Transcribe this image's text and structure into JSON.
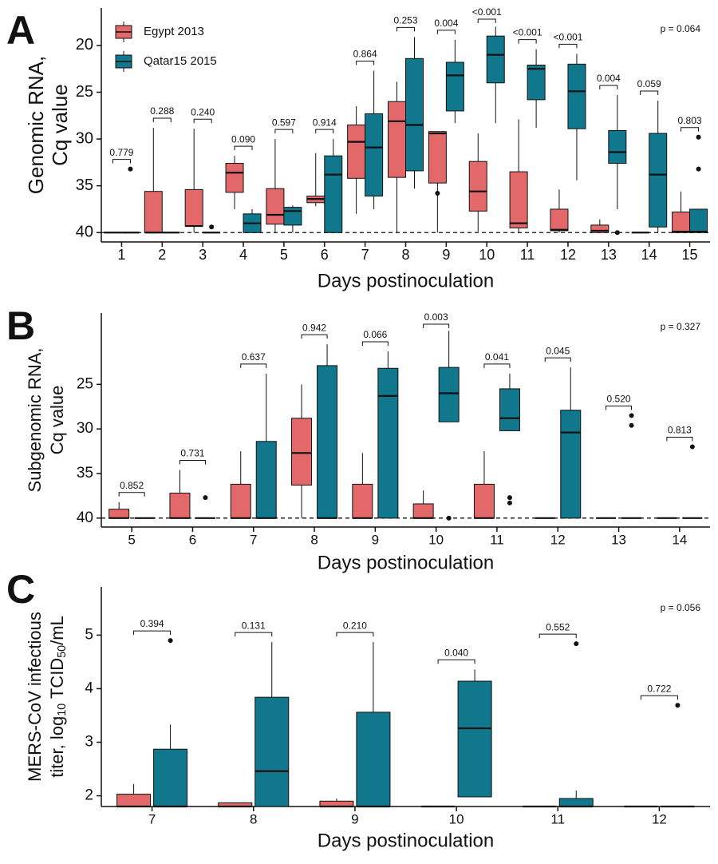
{
  "chart_data": [
    {
      "type": "box",
      "panel": "A",
      "ylabel": [
        [
          "Genomic RNA,"
        ],
        [
          "Cq value"
        ]
      ],
      "xlabel": "Days postinoculation",
      "categories": [
        "1",
        "2",
        "3",
        "4",
        "5",
        "6",
        "7",
        "8",
        "9",
        "10",
        "11",
        "12",
        "13",
        "14",
        "15"
      ],
      "ylim": [
        41,
        16
      ],
      "yticks": [
        20,
        25,
        30,
        35,
        40
      ],
      "hline": 40,
      "legend": "top-left",
      "pvalues": [
        "0.779",
        "0.288",
        "0.240",
        "0.090",
        "0.597",
        "0.914",
        "0.864",
        "0.253",
        "0.004",
        "<0.001",
        "<0.001",
        "<0.001",
        "0.004",
        "0.059",
        "0.803"
      ],
      "p_overall": "p = 0.064",
      "series": [
        {
          "name": "Egypt 2013",
          "color": "#e2686a",
          "min": [
            40,
            28.8,
            28.9,
            31.8,
            30.0,
            31.5,
            26.5,
            23.9,
            29.2,
            29.4,
            27.9,
            35.4,
            38.6,
            40,
            35.6
          ],
          "q1": [
            40,
            35.6,
            35.4,
            32.6,
            35.3,
            36.1,
            28.5,
            26.0,
            29.2,
            32.4,
            33.5,
            37.5,
            39.2,
            40,
            37.8
          ],
          "median": [
            40,
            40,
            39.3,
            33.6,
            38.1,
            36.4,
            30.3,
            28.1,
            29.4,
            35.6,
            39.0,
            39.7,
            39.8,
            40,
            39.9
          ],
          "q3": [
            40,
            40,
            39.3,
            35.7,
            39.1,
            36.8,
            34.2,
            34.1,
            34.7,
            37.7,
            39.5,
            39.8,
            40,
            40,
            40
          ],
          "max": [
            40,
            40,
            40,
            37.5,
            40,
            37.2,
            38.0,
            40,
            40,
            39.9,
            40,
            40,
            40,
            40,
            40
          ],
          "outliers": [
            [],
            [],
            [],
            [],
            [],
            [],
            [],
            [],
            [
              35.8
            ],
            [],
            [],
            [],
            [],
            [],
            []
          ]
        },
        {
          "name": "Qatar15 2015",
          "color": "#10778c",
          "min": [
            40,
            40,
            40,
            37.5,
            37.1,
            30.0,
            22.7,
            19.1,
            19.4,
            18.0,
            20.4,
            20.9,
            25.3,
            25.9,
            37.5
          ],
          "q1": [
            40,
            40,
            40,
            38.0,
            37.3,
            31.8,
            27.3,
            21.4,
            21.8,
            19.0,
            22.1,
            22.0,
            29.1,
            29.4,
            37.5
          ],
          "median": [
            40,
            40,
            40,
            39.0,
            37.7,
            33.8,
            30.9,
            28.5,
            23.2,
            21.0,
            22.5,
            24.9,
            31.4,
            33.8,
            39.9
          ],
          "q3": [
            40,
            40,
            40,
            40,
            39.2,
            40,
            36.1,
            33.4,
            27.0,
            24.0,
            25.8,
            28.9,
            32.6,
            39.4,
            40
          ],
          "max": [
            40,
            40,
            40,
            40,
            40,
            40,
            37.5,
            35.3,
            28.3,
            28.3,
            28.8,
            34.4,
            37.5,
            40,
            40
          ],
          "outliers": [
            [
              33.2
            ],
            [],
            [
              39.4
            ],
            [],
            [],
            [],
            [],
            [],
            [],
            [],
            [],
            [],
            [
              40
            ],
            [],
            [
              29.8,
              33.2
            ]
          ]
        }
      ]
    },
    {
      "type": "box",
      "panel": "B",
      "ylabel": [
        [
          "Subgenomic RNA,"
        ],
        [
          "Cq value"
        ]
      ],
      "xlabel": "Days postinoculation",
      "categories": [
        "5",
        "6",
        "7",
        "8",
        "9",
        "10",
        "11",
        "12",
        "13",
        "14"
      ],
      "ylim": [
        41,
        17
      ],
      "yticks": [
        25,
        30,
        35,
        40
      ],
      "hline": 40,
      "pvalues": [
        "0.852",
        "0.731",
        "0.637",
        "0.942",
        "0.066",
        "0.003",
        "0.041",
        "0.045",
        "0.520",
        "0.813"
      ],
      "p_overall": "p = 0.327",
      "series": [
        {
          "color": "#e2686a",
          "min": [
            38.2,
            34.6,
            32.5,
            25.0,
            32.7,
            36.9,
            32.5,
            40,
            40,
            40
          ],
          "q1": [
            39.0,
            37.2,
            36.2,
            28.8,
            36.2,
            38.4,
            36.2,
            40,
            40,
            40
          ],
          "median": [
            40,
            40,
            40,
            32.7,
            40,
            40,
            40,
            40,
            40,
            40
          ],
          "q3": [
            40,
            40,
            40,
            36.3,
            40,
            40,
            40,
            40,
            40,
            40
          ],
          "max": [
            40,
            40,
            40,
            40,
            40,
            40,
            40,
            40,
            40,
            40
          ],
          "outliers": [
            [],
            [],
            [],
            [],
            [],
            [],
            [],
            [],
            [],
            []
          ]
        },
        {
          "color": "#10778c",
          "min": [
            40,
            40,
            23.8,
            20.5,
            21.3,
            19.0,
            23.8,
            23.1,
            40,
            40
          ],
          "q1": [
            40,
            40,
            31.4,
            22.9,
            23.2,
            23.1,
            25.5,
            27.9,
            40,
            40
          ],
          "median": [
            40,
            40,
            40,
            40,
            26.3,
            26.0,
            28.8,
            30.4,
            40,
            40
          ],
          "q3": [
            40,
            40,
            40,
            40,
            40,
            29.2,
            30.2,
            40,
            40,
            40
          ],
          "max": [
            40,
            40,
            40,
            40,
            40,
            29.2,
            30.2,
            40,
            40,
            40
          ],
          "outliers": [
            [],
            [
              37.7
            ],
            [],
            [],
            [],
            [
              40
            ],
            [
              37.7,
              38.3
            ],
            [],
            [
              28.5,
              29.6
            ],
            [
              32.0
            ]
          ]
        }
      ]
    },
    {
      "type": "box",
      "panel": "C",
      "ylabel": [
        [
          "MERS-CoV infectious"
        ],
        [
          "titer, log",
          {
            "sub": "10"
          },
          " TCID",
          {
            "sub": "50"
          },
          "/mL"
        ]
      ],
      "xlabel": "Days postinoculation",
      "categories": [
        "7",
        "8",
        "9",
        "10",
        "11",
        "12"
      ],
      "ylim": [
        1.8,
        5.9
      ],
      "yticks": [
        2,
        3,
        4,
        5
      ],
      "pvalues": [
        "0.394",
        "0.131",
        "0.210",
        "0.040",
        "0.552",
        "0.722"
      ],
      "p_overall": "p = 0.056",
      "series": [
        {
          "color": "#e2686a",
          "min": [
            1.8,
            1.8,
            1.8,
            1.8,
            1.8,
            1.8
          ],
          "q1": [
            1.8,
            1.8,
            1.8,
            1.8,
            1.8,
            1.8
          ],
          "median": [
            1.8,
            1.8,
            1.8,
            1.8,
            1.8,
            1.8
          ],
          "q3": [
            2.03,
            1.87,
            1.9,
            1.8,
            1.8,
            1.8
          ],
          "max": [
            2.22,
            1.87,
            1.95,
            1.8,
            1.8,
            1.8
          ],
          "outliers": [
            [],
            [],
            [],
            [],
            [],
            []
          ]
        },
        {
          "color": "#10778c",
          "min": [
            1.8,
            1.8,
            1.8,
            1.98,
            1.8,
            1.8
          ],
          "q1": [
            1.8,
            1.8,
            1.8,
            1.98,
            1.8,
            1.8
          ],
          "median": [
            1.8,
            2.46,
            1.8,
            3.26,
            1.8,
            1.8
          ],
          "q3": [
            2.87,
            3.84,
            3.56,
            4.14,
            1.95,
            1.8
          ],
          "max": [
            3.33,
            4.87,
            4.87,
            4.36,
            2.1,
            1.8
          ],
          "outliers": [
            [
              4.9
            ],
            [],
            [],
            [],
            [
              4.84
            ],
            [
              3.69
            ]
          ]
        }
      ]
    }
  ]
}
